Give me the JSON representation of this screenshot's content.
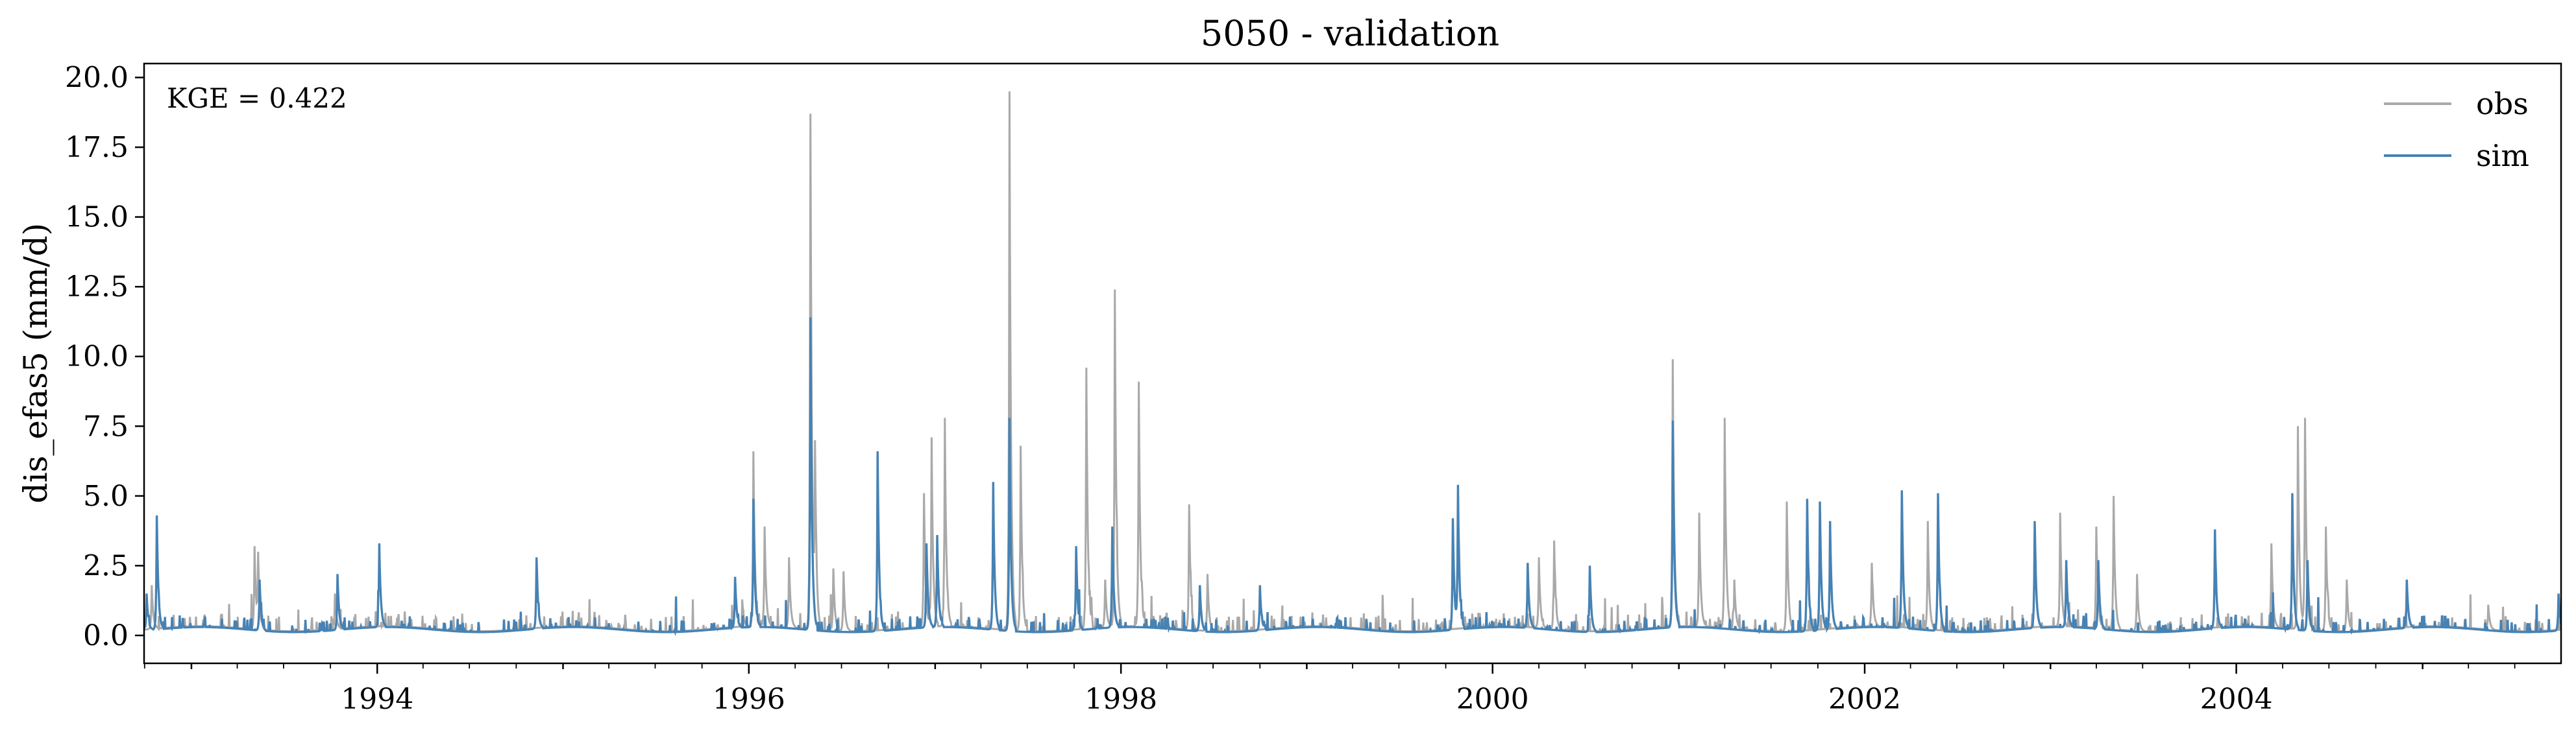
{
  "chart_data": {
    "type": "line",
    "title": "5050 - validation",
    "xlabel": "",
    "ylabel": "dis_efas5 (mm/d)",
    "xlim": [
      "1992-09-30",
      "2005-09-30"
    ],
    "ylim": [
      -1.0,
      20.5
    ],
    "x_ticks": [
      "1994",
      "1996",
      "1998",
      "2000",
      "2002",
      "2004"
    ],
    "y_ticks": [
      "0.0",
      "2.5",
      "5.0",
      "7.5",
      "10.0",
      "12.5",
      "15.0",
      "17.5",
      "20.0"
    ],
    "grid": false,
    "legend_position": "top-right",
    "annotation": "KGE = 0.422",
    "series": [
      {
        "name": "obs",
        "color": "#a9a9a9",
        "peaks": [
          [
            "1992-10-15",
            1.8
          ],
          [
            "1993-05-05",
            3.2
          ],
          [
            "1993-05-12",
            3.0
          ],
          [
            "1993-10-10",
            1.5
          ],
          [
            "1995-12-20",
            1.0
          ],
          [
            "1996-01-10",
            6.6
          ],
          [
            "1996-02-01",
            3.9
          ],
          [
            "1996-03-20",
            2.8
          ],
          [
            "1996-05-01",
            18.7
          ],
          [
            "1996-05-10",
            7.0
          ],
          [
            "1996-06-15",
            2.4
          ],
          [
            "1996-07-05",
            2.3
          ],
          [
            "1996-12-10",
            5.1
          ],
          [
            "1996-12-25",
            7.1
          ],
          [
            "1997-01-20",
            7.8
          ],
          [
            "1997-05-27",
            19.5
          ],
          [
            "1997-06-18",
            6.8
          ],
          [
            "1997-10-25",
            9.6
          ],
          [
            "1997-12-01",
            2.0
          ],
          [
            "1997-12-20",
            12.4
          ],
          [
            "1998-02-05",
            9.1
          ],
          [
            "1998-05-15",
            4.7
          ],
          [
            "1998-06-20",
            2.2
          ],
          [
            "2000-04-01",
            2.8
          ],
          [
            "2000-05-01",
            3.4
          ],
          [
            "2000-12-20",
            9.9
          ],
          [
            "2001-02-10",
            4.4
          ],
          [
            "2001-04-01",
            7.8
          ],
          [
            "2001-04-20",
            2.0
          ],
          [
            "2001-08-01",
            4.8
          ],
          [
            "2002-01-15",
            2.6
          ],
          [
            "2002-05-05",
            4.1
          ],
          [
            "2003-01-20",
            4.4
          ],
          [
            "2003-04-01",
            3.9
          ],
          [
            "2003-05-05",
            5.0
          ],
          [
            "2003-06-20",
            2.2
          ],
          [
            "2004-03-10",
            3.3
          ],
          [
            "2004-05-01",
            7.5
          ],
          [
            "2004-05-15",
            7.8
          ],
          [
            "2004-06-25",
            3.9
          ],
          [
            "2004-08-05",
            2.0
          ],
          [
            "2005-05-10",
            1.1
          ]
        ]
      },
      {
        "name": "sim",
        "color": "#4682b4",
        "peaks": [
          [
            "1992-10-05",
            1.5
          ],
          [
            "1992-10-25",
            4.3
          ],
          [
            "1993-05-15",
            2.0
          ],
          [
            "1993-10-15",
            2.2
          ],
          [
            "1994-01-05",
            3.3
          ],
          [
            "1994-11-10",
            2.8
          ],
          [
            "1995-12-05",
            2.1
          ],
          [
            "1996-01-10",
            4.9
          ],
          [
            "1996-05-01",
            11.4
          ],
          [
            "1996-09-10",
            6.6
          ],
          [
            "1996-12-15",
            3.3
          ],
          [
            "1997-01-05",
            3.6
          ],
          [
            "1997-04-25",
            5.5
          ],
          [
            "1997-05-27",
            7.8
          ],
          [
            "1997-10-05",
            3.2
          ],
          [
            "1997-12-15",
            3.9
          ],
          [
            "1998-06-05",
            1.8
          ],
          [
            "1998-10-01",
            1.8
          ],
          [
            "1999-10-15",
            4.2
          ],
          [
            "1999-10-25",
            5.4
          ],
          [
            "2000-03-10",
            2.6
          ],
          [
            "2000-07-10",
            2.5
          ],
          [
            "2000-12-20",
            7.7
          ],
          [
            "2001-09-10",
            4.9
          ],
          [
            "2001-10-05",
            4.8
          ],
          [
            "2001-10-25",
            4.1
          ],
          [
            "2002-03-15",
            5.2
          ],
          [
            "2002-05-25",
            5.1
          ],
          [
            "2002-12-01",
            4.1
          ],
          [
            "2003-02-01",
            2.7
          ],
          [
            "2003-04-05",
            2.7
          ],
          [
            "2003-11-20",
            3.8
          ],
          [
            "2004-04-20",
            5.1
          ],
          [
            "2004-05-20",
            2.7
          ],
          [
            "2004-12-01",
            2.0
          ],
          [
            "2005-09-25",
            1.5
          ]
        ]
      }
    ]
  }
}
